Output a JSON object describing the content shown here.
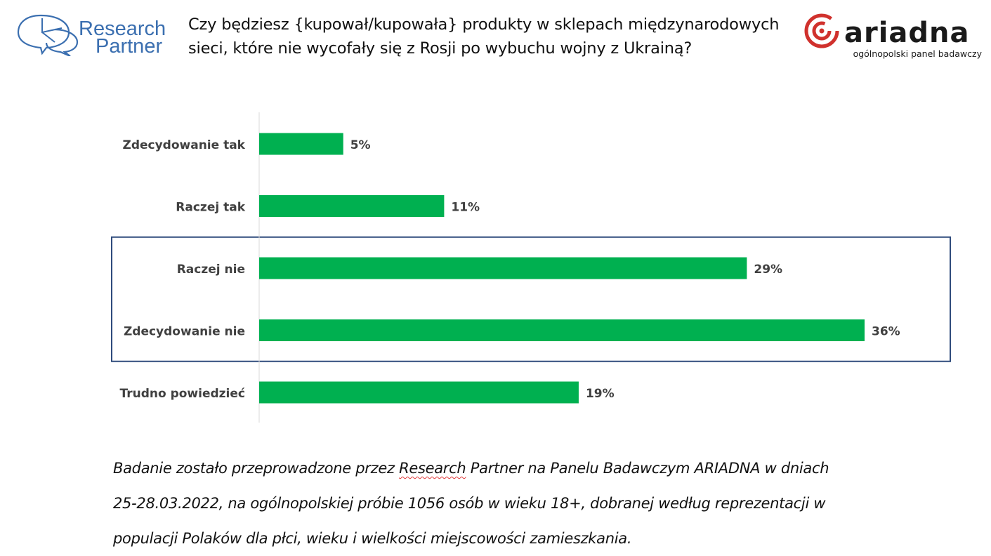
{
  "header": {
    "rp_logo": {
      "line1": "Research",
      "line2": "Partner",
      "color": "#3b6fb0"
    },
    "question_lines": [
      "Czy będziesz {kupował/kupowała} produkty w sklepach międzynarodowych",
      "sieci, które nie wycofały się z Rosji po wybuchu wojny z Ukrainą?"
    ],
    "ariadna_logo": {
      "name": "ariadna",
      "tagline": "ogólnopolski panel badawczy",
      "color": "#d0312d"
    }
  },
  "chart_data": {
    "type": "bar",
    "orientation": "horizontal",
    "title": "Czy będziesz {kupował/kupowała} produkty w sklepach międzynarodowych sieci, które nie wycofały się z Rosji po wybuchu wojny z Ukrainą?",
    "categories": [
      "Zdecydowanie tak",
      "Raczej tak",
      "Raczej nie",
      "Zdecydowanie nie",
      "Trudno powiedzieć"
    ],
    "values": [
      5,
      11,
      29,
      36,
      19
    ],
    "value_labels": [
      "5%",
      "11%",
      "29%",
      "36%",
      "19%"
    ],
    "unit": "%",
    "xlim": [
      0,
      36
    ],
    "xlabel": "",
    "ylabel": "",
    "grid": false,
    "bar_color": "#00b050",
    "highlight": {
      "categories": [
        "Raczej nie",
        "Zdecydowanie nie"
      ],
      "border_color": "#2f4b7c"
    }
  },
  "footnote": {
    "line1_before": "Badanie zostało przeprowadzone przez ",
    "line1_marked": "Research",
    "line1_after": " Partner na Panelu Badawczym ARIADNA w dniach",
    "line2": "25-28.03.2022, na ogólnopolskiej próbie 1056 osób w wieku 18+, dobranej według reprezentacji w",
    "line3": "populacji Polaków dla płci, wieku i wielkości miejscowości zamieszkania."
  }
}
